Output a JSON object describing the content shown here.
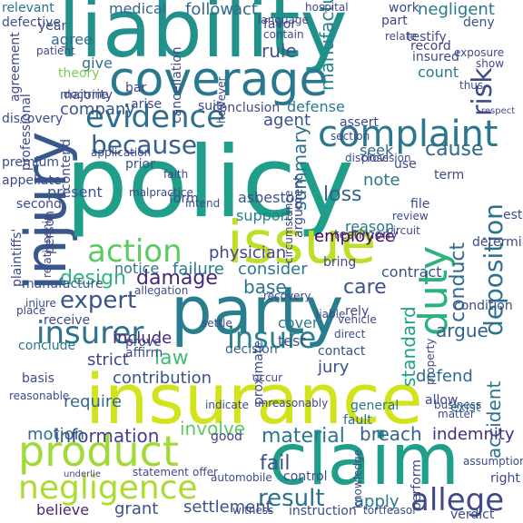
{
  "words": [
    {
      "text": "liability",
      "color": "#21918c",
      "vertical": false
    },
    {
      "text": "coverage",
      "color": "#2a788e",
      "vertical": false
    },
    {
      "text": "injury",
      "color": "#38588c",
      "vertical": true
    },
    {
      "text": "policy",
      "color": "#1f9e89",
      "vertical": false
    },
    {
      "text": "evidence",
      "color": "#2d708e",
      "vertical": false
    },
    {
      "text": "complaint",
      "color": "#2a788e",
      "vertical": false
    },
    {
      "text": "because",
      "color": "#35608d",
      "vertical": false
    },
    {
      "text": "risk",
      "color": "#3e4a89",
      "vertical": true
    },
    {
      "text": "issue",
      "color": "#bddf26",
      "vertical": false
    },
    {
      "text": "action",
      "color": "#5ec962",
      "vertical": false
    },
    {
      "text": "party",
      "color": "#287d8e",
      "vertical": false
    },
    {
      "text": "expert",
      "color": "#3b528b",
      "vertical": false
    },
    {
      "text": "insurer",
      "color": "#2c728e",
      "vertical": false
    },
    {
      "text": "insure",
      "color": "#26828e",
      "vertical": false
    },
    {
      "text": "duty",
      "color": "#2db27d",
      "vertical": true
    },
    {
      "text": "deposition",
      "color": "#2c728e",
      "vertical": true
    },
    {
      "text": "insurance",
      "color": "#d2e21b",
      "vertical": false
    },
    {
      "text": "product",
      "color": "#a0da39",
      "vertical": false
    },
    {
      "text": "claim",
      "color": "#1f9e89",
      "vertical": false
    },
    {
      "text": "negligence",
      "color": "#addc30",
      "vertical": false
    },
    {
      "text": "allege",
      "color": "#3e4a89",
      "vertical": false
    },
    {
      "text": "result",
      "color": "#2c728e",
      "vertical": false
    },
    {
      "text": "information",
      "color": "#424086",
      "vertical": false
    },
    {
      "text": "material",
      "color": "#2a788e",
      "vertical": false
    },
    {
      "text": "breach",
      "color": "#33638d",
      "vertical": false
    },
    {
      "text": "damage",
      "color": "#482878",
      "vertical": false
    },
    {
      "text": "design",
      "color": "#2fb47c",
      "vertical": false
    },
    {
      "text": "conduct",
      "color": "#31688e",
      "vertical": true
    },
    {
      "text": "accident",
      "color": "#2c728e",
      "vertical": true
    },
    {
      "text": "standard",
      "color": "#1fa088",
      "vertical": true
    },
    {
      "text": "summary",
      "color": "#3b528b",
      "vertical": false
    },
    {
      "text": "manufacturer",
      "color": "#3b528b",
      "vertical": false
    },
    {
      "text": "cause",
      "color": "#31688e",
      "vertical": false
    },
    {
      "text": "provide",
      "color": "#2c728e",
      "vertical": true
    },
    {
      "text": "know",
      "color": "#26828e",
      "vertical": true
    },
    {
      "text": "rule",
      "color": "#3b528b",
      "vertical": false
    },
    {
      "text": "agent",
      "color": "#3b528b",
      "vertical": false
    },
    {
      "text": "company",
      "color": "#39568c",
      "vertical": false
    },
    {
      "text": "loss",
      "color": "#35608d",
      "vertical": false
    },
    {
      "text": "note",
      "color": "#2a788e",
      "vertical": false
    },
    {
      "text": "base",
      "color": "#2c728e",
      "vertical": false
    },
    {
      "text": "care",
      "color": "#3b528b",
      "vertical": false
    },
    {
      "text": "law",
      "color": "#3fbc73",
      "vertical": false
    },
    {
      "text": "argue",
      "color": "#33638d",
      "vertical": false
    },
    {
      "text": "require",
      "color": "#31688e",
      "vertical": true
    },
    {
      "text": "motion",
      "color": "#2c728e",
      "vertical": true
    },
    {
      "text": "strict",
      "color": "#404688",
      "vertical": false
    },
    {
      "text": "include",
      "color": "#482878",
      "vertical": false
    },
    {
      "text": "contribution",
      "color": "#3b528b",
      "vertical": false
    },
    {
      "text": "jury",
      "color": "#3b528b",
      "vertical": false
    },
    {
      "text": "defend",
      "color": "#31688e",
      "vertical": false
    },
    {
      "text": "fail",
      "color": "#3b528b",
      "vertical": false
    },
    {
      "text": "indemnity",
      "color": "#472d7b",
      "vertical": false
    },
    {
      "text": "involve",
      "color": "#5ec962",
      "vertical": false
    },
    {
      "text": "apply",
      "color": "#2a788e",
      "vertical": false
    },
    {
      "text": "grant",
      "color": "#3b528b",
      "vertical": false
    },
    {
      "text": "settlement",
      "color": "#3b528b",
      "vertical": false
    },
    {
      "text": "believe",
      "color": "#482878",
      "vertical": false
    },
    {
      "text": "failure",
      "color": "#2a788e",
      "vertical": false
    },
    {
      "text": "consider",
      "color": "#2a788e",
      "vertical": false
    },
    {
      "text": "notice",
      "color": "#2a788e",
      "vertical": false
    },
    {
      "text": "support",
      "color": "#26828e",
      "vertical": false
    },
    {
      "text": "physician",
      "color": "#3e4a89",
      "vertical": true
    },
    {
      "text": "present",
      "color": "#3b528b",
      "vertical": true
    },
    {
      "text": "give",
      "color": "#2c728e",
      "vertical": true
    },
    {
      "text": "theory",
      "color": "#7ad151",
      "vertical": false
    },
    {
      "text": "medical",
      "color": "#31688e",
      "vertical": false
    },
    {
      "text": "follow",
      "color": "#31688e",
      "vertical": false
    },
    {
      "text": "act",
      "color": "#31688e",
      "vertical": false
    },
    {
      "text": "negligent",
      "color": "#2a788e",
      "vertical": false
    },
    {
      "text": "agree",
      "color": "#31688e",
      "vertical": false
    },
    {
      "text": "favor",
      "color": "#404688",
      "vertical": false
    },
    {
      "text": "defense",
      "color": "#2a788e",
      "vertical": false
    },
    {
      "text": "seek",
      "color": "#31688e",
      "vertical": false
    },
    {
      "text": "count",
      "color": "#2a788e",
      "vertical": false
    },
    {
      "text": "employee",
      "color": "#440154",
      "vertical": true
    },
    {
      "text": "testimony",
      "color": "#404688",
      "vertical": true
    },
    {
      "text": "contract",
      "color": "#3b528b",
      "vertical": false
    },
    {
      "text": "reason",
      "color": "#2a788e",
      "vertical": false
    },
    {
      "text": "manufacture",
      "color": "#3b528b",
      "vertical": false
    },
    {
      "text": "conclude",
      "color": "#2a788e",
      "vertical": true
    },
    {
      "text": "cover",
      "color": "#2a788e",
      "vertical": false
    },
    {
      "text": "test",
      "color": "#3b528b",
      "vertical": false
    },
    {
      "text": "decision",
      "color": "#31688e",
      "vertical": false
    },
    {
      "text": "contact",
      "color": "#3b528b",
      "vertical": false
    },
    {
      "text": "condition",
      "color": "#3e4a89",
      "vertical": true
    },
    {
      "text": "determine",
      "color": "#3e4a89",
      "vertical": true
    },
    {
      "text": "establish",
      "color": "#3e4a89",
      "vertical": true
    },
    {
      "text": "asbestos",
      "color": "#3b528b",
      "vertical": false
    },
    {
      "text": "general",
      "color": "#2a788e",
      "vertical": false
    },
    {
      "text": "fault",
      "color": "#31688e",
      "vertical": false
    },
    {
      "text": "exist",
      "color": "#2a788e",
      "vertical": false
    },
    {
      "text": "good",
      "color": "#404688",
      "vertical": false
    },
    {
      "text": "control",
      "color": "#3e4a89",
      "vertical": false
    },
    {
      "text": "relevant",
      "color": "#2c728e",
      "vertical": false
    },
    {
      "text": "defective",
      "color": "#3b528b",
      "vertical": false
    },
    {
      "text": "work",
      "color": "#3e4a89",
      "vertical": false
    },
    {
      "text": "deny",
      "color": "#3b528b",
      "vertical": false
    },
    {
      "text": "testify",
      "color": "#3e4a89",
      "vertical": false
    },
    {
      "text": "record",
      "color": "#3e4a89",
      "vertical": false
    },
    {
      "text": "insured",
      "color": "#3e4a89",
      "vertical": false
    },
    {
      "text": "hospital",
      "color": "#404688",
      "vertical": false
    },
    {
      "text": "language",
      "color": "#404688",
      "vertical": false
    },
    {
      "text": "part",
      "color": "#404688",
      "vertical": false
    },
    {
      "text": "relate",
      "color": "#3e4a89",
      "vertical": false
    },
    {
      "text": "suit",
      "color": "#404688",
      "vertical": false
    },
    {
      "text": "conclusion",
      "color": "#3e4a89",
      "vertical": false
    },
    {
      "text": "assert",
      "color": "#3e4a89",
      "vertical": false
    },
    {
      "text": "section",
      "color": "#3e4a89",
      "vertical": false
    },
    {
      "text": "majority",
      "color": "#3e4a89",
      "vertical": false
    },
    {
      "text": "arise",
      "color": "#3e4a89",
      "vertical": false
    },
    {
      "text": "discovery",
      "color": "#3e4a89",
      "vertical": false
    },
    {
      "text": "premium",
      "color": "#3e4a89",
      "vertical": false
    },
    {
      "text": "appellate",
      "color": "#3e4a89",
      "vertical": false
    },
    {
      "text": "second",
      "color": "#3e4a89",
      "vertical": false
    },
    {
      "text": "faith",
      "color": "#3e4a89",
      "vertical": false
    },
    {
      "text": "form",
      "color": "#3e4a89",
      "vertical": false
    },
    {
      "text": "intend",
      "color": "#3e4a89",
      "vertical": false
    },
    {
      "text": "file",
      "color": "#3e4a89",
      "vertical": false
    },
    {
      "text": "review",
      "color": "#3e4a89",
      "vertical": false
    },
    {
      "text": "term",
      "color": "#3e4a89",
      "vertical": false
    },
    {
      "text": "bar",
      "color": "#3e4a89",
      "vertical": false
    },
    {
      "text": "prior",
      "color": "#3e4a89",
      "vertical": false
    },
    {
      "text": "liable",
      "color": "#3e4a89",
      "vertical": false
    },
    {
      "text": "rely",
      "color": "#3e4a89",
      "vertical": false
    },
    {
      "text": "vehicle",
      "color": "#3e4a89",
      "vertical": false
    },
    {
      "text": "settle",
      "color": "#3e4a89",
      "vertical": false
    },
    {
      "text": "statement",
      "color": "#3e4a89",
      "vertical": false
    },
    {
      "text": "offer",
      "color": "#3e4a89",
      "vertical": false
    },
    {
      "text": "witness",
      "color": "#3e4a89",
      "vertical": false
    },
    {
      "text": "instruction",
      "color": "#3e4a89",
      "vertical": false
    },
    {
      "text": "tortfeasor",
      "color": "#3e4a89",
      "vertical": false
    },
    {
      "text": "verdict",
      "color": "#3e4a89",
      "vertical": false
    },
    {
      "text": "business",
      "color": "#3e4a89",
      "vertical": false
    },
    {
      "text": "right",
      "color": "#3e4a89",
      "vertical": false
    },
    {
      "text": "assumption",
      "color": "#3e4a89",
      "vertical": false
    },
    {
      "text": "allow",
      "color": "#3e4a89",
      "vertical": false
    },
    {
      "text": "matter",
      "color": "#3e4a89",
      "vertical": false
    },
    {
      "text": "occur",
      "color": "#3e4a89",
      "vertical": false
    },
    {
      "text": "basis",
      "color": "#3e4a89",
      "vertical": false
    },
    {
      "text": "reasonable",
      "color": "#3e4a89",
      "vertical": false
    },
    {
      "text": "place",
      "color": "#3e4a89",
      "vertical": false
    },
    {
      "text": "receive",
      "color": "#3e4a89",
      "vertical": false
    },
    {
      "text": "prove",
      "color": "#3e4a89",
      "vertical": false
    },
    {
      "text": "affirm",
      "color": "#3e4a89",
      "vertical": false
    },
    {
      "text": "recovery",
      "color": "#3e4a89",
      "vertical": false
    },
    {
      "text": "allegation",
      "color": "#3e4a89",
      "vertical": false
    },
    {
      "text": "circumstance",
      "color": "#3e4a89",
      "vertical": true
    },
    {
      "text": "argument",
      "color": "#3e4a89",
      "vertical": true
    },
    {
      "text": "relationship",
      "color": "#3e4a89",
      "vertical": true
    },
    {
      "text": "person",
      "color": "#3e4a89",
      "vertical": true
    },
    {
      "text": "plaintiffs'",
      "color": "#3e4a89",
      "vertical": true
    },
    {
      "text": "professional",
      "color": "#3e4a89",
      "vertical": true
    },
    {
      "text": "agreement",
      "color": "#3e4a89",
      "vertical": true
    },
    {
      "text": "patient",
      "color": "#3e4a89",
      "vertical": false
    },
    {
      "text": "year",
      "color": "#3e4a89",
      "vertical": false
    },
    {
      "text": "doctrine",
      "color": "#3e4a89",
      "vertical": false
    },
    {
      "text": "contend",
      "color": "#3e4a89",
      "vertical": true
    },
    {
      "text": "exposure",
      "color": "#3e4a89",
      "vertical": false
    },
    {
      "text": "show",
      "color": "#3e4a89",
      "vertical": false
    },
    {
      "text": "thus",
      "color": "#3e4a89",
      "vertical": false
    },
    {
      "text": "respect",
      "color": "#3e4a89",
      "vertical": false
    },
    {
      "text": "disclose",
      "color": "#3e4a89",
      "vertical": false
    },
    {
      "text": "provision",
      "color": "#3e4a89",
      "vertical": false
    },
    {
      "text": "use",
      "color": "#3e4a89",
      "vertical": false
    },
    {
      "text": "proximate",
      "color": "#3e4a89",
      "vertical": true
    },
    {
      "text": "unreasonably",
      "color": "#3e4a89",
      "vertical": false
    },
    {
      "text": "indicate",
      "color": "#3e4a89",
      "vertical": false
    },
    {
      "text": "knowledge",
      "color": "#3e4a89",
      "vertical": true
    },
    {
      "text": "perform",
      "color": "#3e4a89",
      "vertical": true
    },
    {
      "text": "automobile",
      "color": "#3e4a89",
      "vertical": false
    },
    {
      "text": "underlie",
      "color": "#3e4a89",
      "vertical": false
    },
    {
      "text": "injure",
      "color": "#3e4a89",
      "vertical": false
    },
    {
      "text": "malpractice",
      "color": "#3e4a89",
      "vertical": false
    },
    {
      "text": "application",
      "color": "#3e4a89",
      "vertical": false
    },
    {
      "text": "cancellation",
      "color": "#3e4a89",
      "vertical": true
    },
    {
      "text": "however",
      "color": "#3e4a89",
      "vertical": true
    },
    {
      "text": "contain",
      "color": "#3e4a89",
      "vertical": false
    },
    {
      "text": "bring",
      "color": "#3e4a89",
      "vertical": false
    },
    {
      "text": "circuit",
      "color": "#3e4a89",
      "vertical": false
    },
    {
      "text": "direct",
      "color": "#3e4a89",
      "vertical": false
    },
    {
      "text": "property",
      "color": "#3e4a89",
      "vertical": true
    }
  ]
}
